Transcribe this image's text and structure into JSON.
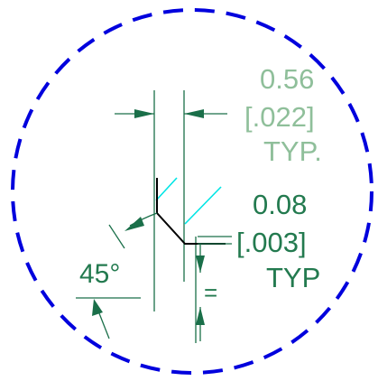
{
  "detail": {
    "dim_top": {
      "value": "0.56",
      "alt_value": "[.022]",
      "note": "TYP."
    },
    "dim_step": {
      "value": "0.08",
      "alt_value": "[.003]",
      "note": "TYP"
    },
    "angle": "45°",
    "equal_mark": "="
  },
  "colors": {
    "boundary_circle": "#0000dd",
    "dimension_light": "#8fbf9a",
    "dimension_dark": "#237a4f",
    "leader": "#1a6f49",
    "hatch": "#00e5e5",
    "profile": "#000000"
  }
}
